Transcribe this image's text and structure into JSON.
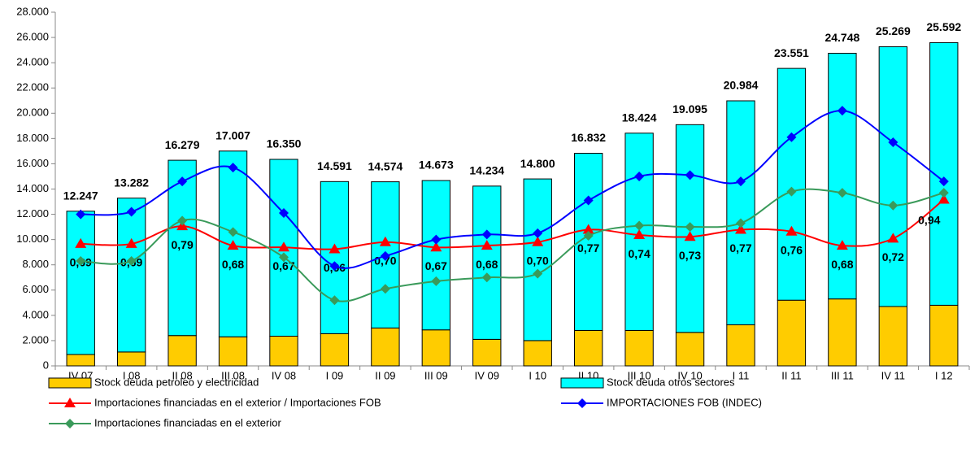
{
  "chart_data": {
    "type": "bar",
    "categories": [
      "IV 07",
      "I 08",
      "II 08",
      "III 08",
      "IV 08",
      "I 09",
      "II 09",
      "III 09",
      "IV 09",
      "I 10",
      "II 10",
      "III 10",
      "IV 10",
      "I 11",
      "II 11",
      "III 11",
      "IV 11",
      "I 12"
    ],
    "series": [
      {
        "name": "Stock deuda petroleo y electricidad",
        "type": "bar",
        "color": "#ffcc00",
        "values": [
          900,
          1100,
          2400,
          2300,
          2350,
          2550,
          3000,
          2850,
          2100,
          2000,
          2800,
          2800,
          2650,
          3250,
          5200,
          5300,
          4700,
          4800
        ]
      },
      {
        "name": "Stock deuda otros sectores",
        "type": "bar",
        "color": "#00ffff",
        "values": [
          11347,
          12182,
          13879,
          14707,
          14000,
          12041,
          11574,
          11823,
          12134,
          12800,
          14032,
          15624,
          16445,
          17734,
          18351,
          19448,
          20569,
          20792
        ]
      },
      {
        "name": "Importaciones financiadas en el exterior / Importaciones FOB",
        "type": "line",
        "color": "#ff0000",
        "marker": "triangle",
        "axis": "y2",
        "values": [
          0.69,
          0.69,
          0.79,
          0.68,
          0.67,
          0.66,
          0.7,
          0.67,
          0.68,
          0.7,
          0.77,
          0.74,
          0.73,
          0.77,
          0.76,
          0.68,
          0.72,
          0.94
        ],
        "value_labels": [
          "0,69",
          "0,69",
          "0,79",
          "0,68",
          "0,67",
          "0,66",
          "0,70",
          "0,67",
          "0,68",
          "0,70",
          "0,77",
          "0,74",
          "0,73",
          "0,77",
          "0,76",
          "0,68",
          "0,72",
          "0,94"
        ]
      },
      {
        "name": "IMPORTACIONES FOB (INDEC)",
        "type": "line",
        "color": "#0000ff",
        "marker": "diamond",
        "values": [
          12000,
          12200,
          14600,
          15700,
          12100,
          7900,
          8700,
          10000,
          10400,
          10500,
          13100,
          15000,
          15100,
          14600,
          18100,
          20200,
          17700,
          14600
        ]
      },
      {
        "name": "Importaciones financiadas en el exterior",
        "type": "line",
        "color": "#3a9a5a",
        "marker": "diamond",
        "values": [
          8300,
          8300,
          11500,
          10600,
          8600,
          5200,
          6100,
          6700,
          7000,
          7300,
          10300,
          11100,
          11000,
          11300,
          13800,
          13700,
          12700,
          13700
        ]
      }
    ],
    "stack_totals": [
      12247,
      13282,
      16279,
      17007,
      16350,
      14591,
      14574,
      14673,
      14234,
      14800,
      16832,
      18424,
      19095,
      20984,
      23551,
      24748,
      25269,
      25592
    ],
    "stack_total_labels": [
      "12.247",
      "13.282",
      "16.279",
      "17.007",
      "16.350",
      "14.591",
      "14.574",
      "14.673",
      "14.234",
      "14.800",
      "16.832",
      "18.424",
      "19.095",
      "20.984",
      "23.551",
      "24.748",
      "25.269",
      "25.592"
    ],
    "ylim": [
      0,
      28000
    ],
    "yticks": [
      0,
      {
        "value": 2000,
        "label": "2.000"
      },
      {
        "value": 4000,
        "label": "4.000"
      },
      {
        "value": 6000,
        "label": "6.000"
      },
      {
        "value": 8000,
        "label": "8.000"
      },
      {
        "value": 10000,
        "label": "10.000"
      },
      {
        "value": 12000,
        "label": "12.000"
      },
      {
        "value": 14000,
        "label": "14.000"
      },
      {
        "value": 16000,
        "label": "16.000"
      },
      {
        "value": 18000,
        "label": "18.000"
      },
      {
        "value": 20000,
        "label": "20.000"
      },
      {
        "value": 22000,
        "label": "22.000"
      },
      {
        "value": 24000,
        "label": "24.000"
      },
      {
        "value": 26000,
        "label": "26.000"
      },
      {
        "value": 28000,
        "label": "28.000"
      }
    ],
    "y2lim": [
      0,
      2
    ],
    "grid": false,
    "legend": "bottom"
  }
}
